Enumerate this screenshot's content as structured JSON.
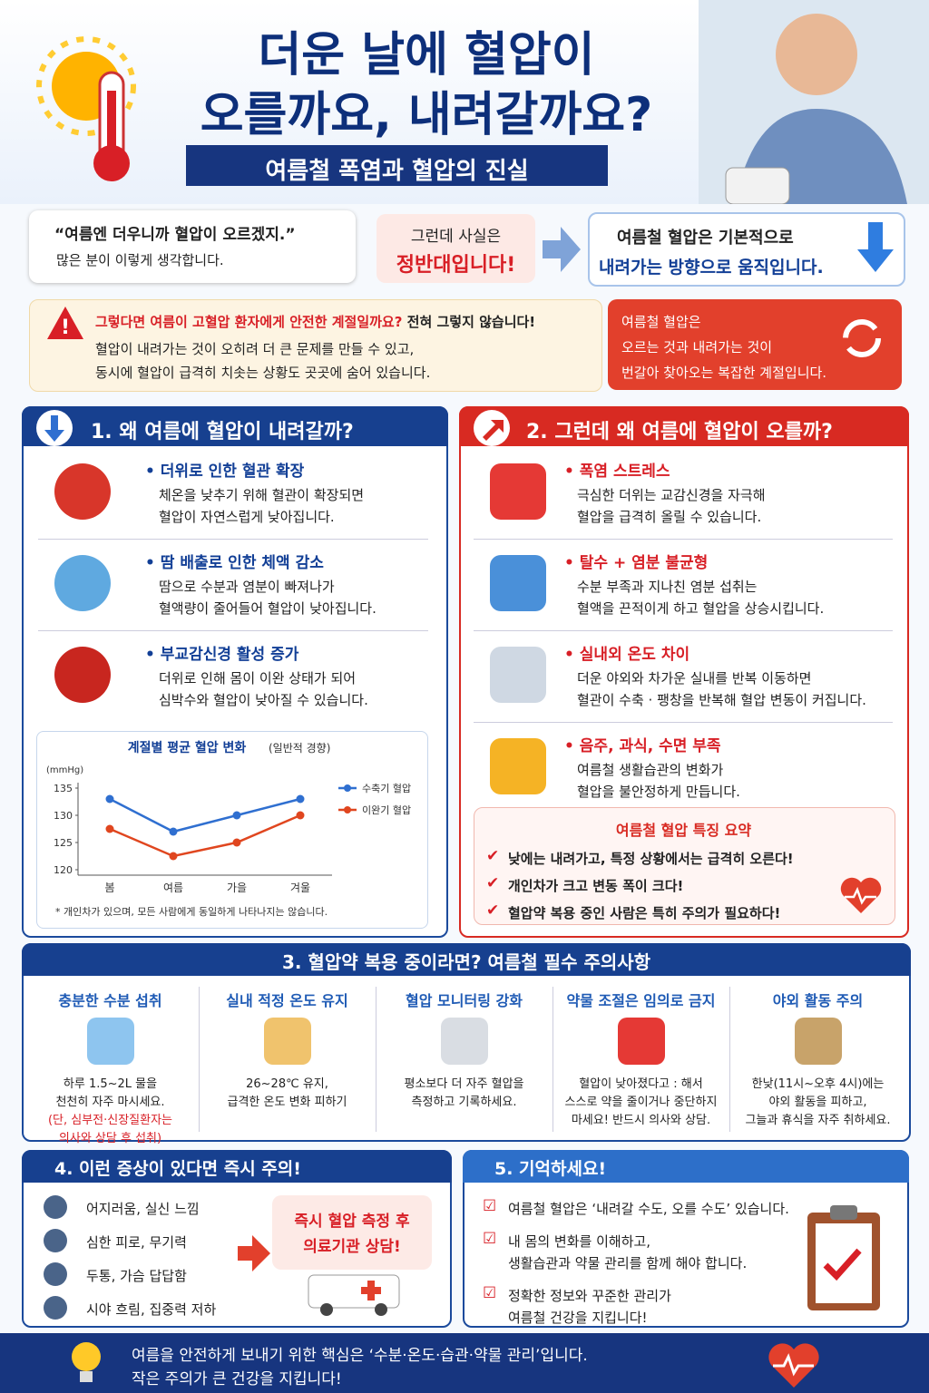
{
  "header": {
    "title_lines": [
      "더운 날에 혈압이",
      "오를까요, 내려갈까요?"
    ],
    "subtitle": "여름철 폭염과 혈압의 진실"
  },
  "intro": {
    "quote": "“여름엔 더우니까 혈압이 오르겠지.”",
    "quote_note": "많은 분이 이렇게 생각합니다.",
    "middle_lines": [
      "그런데 사실은",
      "정반대입니다!"
    ],
    "fact_lines": [
      "여름철 혈압은 기본적으로",
      "내려가는 방향으로 움직입니다."
    ]
  },
  "warning": {
    "headline": "그렇다면 여름이 고혈압 환자에게 안전한 계절일까요?",
    "headline_tail": "전혀 그렇지 않습니다!",
    "lines": [
      "혈압이 내려가는 것이 오히려 더 큰 문제를 만들 수 있고,",
      "동시에 혈압이 급격히 치솟는 상황도 곳곳에 숨어 있습니다."
    ],
    "side_lines": [
      "여름철 혈압은",
      "오르는 것과 내려가는 것이",
      "번갈아 찾아오는 복잡한 계절입니다."
    ]
  },
  "section1": {
    "title": "1. 왜 여름에 혈압이 내려갈까?",
    "items": [
      {
        "heading": "• 더위로 인한 혈관 확장",
        "lines": [
          "체온을 낮추기 위해 혈관이 확장되면",
          "혈압이 자연스럽게 낮아집니다."
        ]
      },
      {
        "heading": "• 땀 배출로 인한 체액 감소",
        "lines": [
          "땀으로 수분과 염분이 빠져나가",
          "혈액량이 줄어들어 혈압이 낮아집니다."
        ]
      },
      {
        "heading": "• 부교감신경 활성 증가",
        "lines": [
          "더위로 인해 몸이 이완 상태가 되어",
          "심박수와 혈압이 낮아질 수 있습니다."
        ]
      }
    ]
  },
  "chart_data": {
    "type": "line",
    "title": "계절별 평균 혈압 변화",
    "subtitle": "(일반적 경향)",
    "y_label": "(mmHg)",
    "categories": [
      "봄",
      "여름",
      "가을",
      "겨울"
    ],
    "series": [
      {
        "name": "수축기 혈압",
        "color": "#2f6fd0",
        "values": [
          133,
          127,
          130,
          133
        ]
      },
      {
        "name": "이완기 혈압",
        "color": "#e0461f",
        "values": [
          127.5,
          122.5,
          125,
          130
        ]
      }
    ],
    "ylim": [
      120,
      135
    ],
    "yticks": [
      120,
      125,
      130,
      135
    ],
    "grid": false,
    "legend": "right",
    "note": "* 개인차가 있으며, 모든 사람에게 동일하게 나타나지는 않습니다."
  },
  "section2": {
    "title": "2. 그런데 왜 여름에 혈압이 오를까?",
    "items": [
      {
        "heading": "• 폭염 스트레스",
        "lines": [
          "극심한 더위는 교감신경을 자극해",
          "혈압을 급격히 올릴 수 있습니다."
        ]
      },
      {
        "heading": "• 탈수 + 염분 불균형",
        "lines": [
          "수분 부족과 지나친 염분 섭취는",
          "혈액을 끈적이게 하고 혈압을 상승시킵니다."
        ]
      },
      {
        "heading": "• 실내외 온도 차이",
        "lines": [
          "더운 야외와 차가운 실내를 반복 이동하면",
          "혈관이 수축 · 팽창을 반복해 혈압 변동이 커집니다."
        ]
      },
      {
        "heading": "• 음주, 과식, 수면 부족",
        "lines": [
          "여름철 생활습관의 변화가",
          "혈압을 불안정하게 만듭니다."
        ]
      }
    ],
    "summary": {
      "title": "여름철 혈압 특징 요약",
      "items": [
        "낮에는 내려가고, 특정 상황에서는 급격히 오른다!",
        "개인차가 크고 변동 폭이 크다!",
        "혈압약 복용 중인 사람은 특히 주의가 필요하다!"
      ]
    }
  },
  "section3": {
    "title": "3. 혈압약 복용 중이라면? 여름철 필수 주의사항",
    "columns": [
      {
        "heading": "충분한 수분 섭취",
        "lines": [
          "하루 1.5~2L 물을",
          "천천히 자주 마시세요."
        ],
        "notes": [
          "(단, 심부전·신장질환자는",
          "의사와 상담 후 섭취)"
        ]
      },
      {
        "heading": "실내 적정 온도 유지",
        "lines": [
          "26~28℃ 유지,",
          "급격한 온도 변화 피하기"
        ],
        "notes": []
      },
      {
        "heading": "혈압 모니터링 강화",
        "lines": [
          "평소보다 더 자주 혈압을",
          "측정하고 기록하세요."
        ],
        "notes": []
      },
      {
        "heading": "약물 조절은 임의로 금지",
        "lines": [
          "혈압이 낮아졌다고 : 해서",
          "스스로 약을 줄이거나 중단하지",
          "마세요! 반드시 의사와 상담."
        ],
        "notes": []
      },
      {
        "heading": "야외 활동 주의",
        "lines": [
          "한낮(11시~오후 4시)에는",
          "야외 활동을 피하고,",
          "그늘과 휴식을 자주 취하세요."
        ],
        "notes": []
      }
    ]
  },
  "section4": {
    "title": "4. 이런 증상이 있다면 즉시 주의!",
    "symptoms": [
      "어지러움, 실신 느낌",
      "심한 피로, 무기력",
      "두통, 가슴 답답함",
      "시야 흐림, 집중력 저하"
    ],
    "callout_lines": [
      "즉시 혈압 측정 후",
      "의료기관 상담!"
    ]
  },
  "section5": {
    "title": "5. 기억하세요!",
    "items": [
      [
        "여름철 혈압은 ‘내려갈 수도, 오를 수도’ 있습니다."
      ],
      [
        "내 몸의 변화를 이해하고,",
        "생활습관과 약물 관리를 함께 해야 합니다."
      ],
      [
        "정확한 정보와 꾸준한 관리가",
        "여름철 건강을 지킵니다!"
      ]
    ]
  },
  "footer": {
    "lines": [
      "여름을 안전하게 보내기 위한 핵심은 ‘수분·온도·습관·약물 관리’입니다.",
      "작은 주의가 큰 건강을 지킵니다!"
    ]
  }
}
